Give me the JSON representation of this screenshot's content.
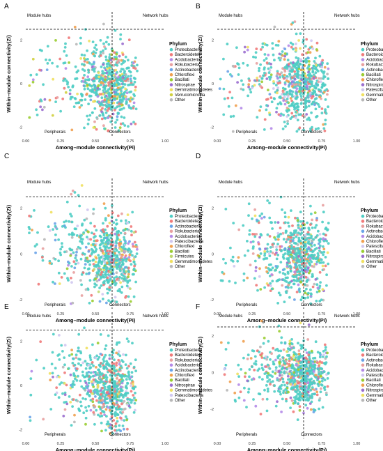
{
  "figure": {
    "panels": [
      {
        "letter": "A",
        "chart_data": {
          "type": "scatter",
          "xlabel": "Among–module connectivity(Pi)",
          "ylabel": "Within–module connectivity(Zi)",
          "xlim": [
            0,
            1
          ],
          "ylim": [
            -2.4,
            3.3
          ],
          "xticks": [
            "0.00",
            "0.25",
            "0.50",
            "0.75",
            "1.00"
          ],
          "xtick_values": [
            0,
            0.25,
            0.5,
            0.75,
            1
          ],
          "yticks": [
            "-2",
            "0",
            "2"
          ],
          "ytick_values": [
            -2,
            0,
            2
          ],
          "thresholds": {
            "pi": 0.62,
            "zi": 2.5
          },
          "quadrants": {
            "top_left": "Module hubs",
            "top_right": "Network hubs",
            "bottom_left": "Peripherals",
            "bottom_right": "Connectors"
          },
          "legend": {
            "title": "Phylum",
            "placement": "right",
            "entries": [
              "Proteobacteria",
              "Bacteroidetes",
              "Acidobacteria",
              "Rokubacteria",
              "Actinobacteria",
              "Chloroflexi",
              "Bacillati",
              "Nitrospirae",
              "Gemmatimonadetes",
              "Verrucomicrobia",
              "Other"
            ]
          },
          "seed": 11,
          "n_points": 700
        }
      },
      {
        "letter": "B",
        "chart_data": {
          "type": "scatter",
          "xlabel": "Among–module connectivity(Pi)",
          "ylabel": "Within–module connectivity(Zi)",
          "xlim": [
            0,
            1
          ],
          "ylim": [
            -2.4,
            3.3
          ],
          "xticks": [
            "0.00",
            "0.25",
            "0.50",
            "0.75",
            "1.00"
          ],
          "xtick_values": [
            0,
            0.25,
            0.5,
            0.75,
            1
          ],
          "yticks": [
            "-2",
            "0",
            "2"
          ],
          "ytick_values": [
            -2,
            0,
            2
          ],
          "thresholds": {
            "pi": 0.62,
            "zi": 2.5
          },
          "quadrants": {
            "top_left": "Module hubs",
            "top_right": "Network hubs",
            "bottom_left": "Peripherals",
            "bottom_right": "Connectors"
          },
          "legend": {
            "title": "Phylum",
            "placement": "right",
            "entries": [
              "Proteobacteria",
              "Bacteroidetes",
              "Acidobacteria",
              "Rokubacteria",
              "Actinobacteria",
              "Bacillati",
              "Chloroflexi",
              "Nitrospirae",
              "Patescibacteria",
              "Gemmatimonadetes",
              "Other"
            ]
          },
          "seed": 23,
          "n_points": 700
        }
      },
      {
        "letter": "C",
        "chart_data": {
          "type": "scatter",
          "xlabel": "Among–module connectivity(Pi)",
          "ylabel": "Within–module connectivity(Zi)",
          "xlim": [
            0,
            1
          ],
          "ylim": [
            -2.4,
            3.3
          ],
          "xticks": [
            "0.00",
            "0.25",
            "0.50",
            "0.75",
            "1.00"
          ],
          "xtick_values": [
            0,
            0.25,
            0.5,
            0.75,
            1
          ],
          "yticks": [
            "-2",
            "0",
            "2"
          ],
          "ytick_values": [
            -2,
            0,
            2
          ],
          "thresholds": {
            "pi": 0.62,
            "zi": 2.5
          },
          "quadrants": {
            "top_left": "Module hubs",
            "top_right": "Network hubs",
            "bottom_left": "Peripherals",
            "bottom_right": "Connectors"
          },
          "legend": {
            "title": "Phylum",
            "placement": "right",
            "entries": [
              "Proteobacteria",
              "Bacteroidetes",
              "Actinobacteria",
              "Rokubacteria",
              "Acidobacteria",
              "Patescibacteria",
              "Chloroflexi",
              "Bacillati",
              "Firmicutes",
              "Gemmatimonadetes",
              "Other"
            ]
          },
          "seed": 37,
          "n_points": 700
        }
      },
      {
        "letter": "D",
        "chart_data": {
          "type": "scatter",
          "xlabel": "Among–module connectivity(Pi)",
          "ylabel": "Within–module connectivity(Zi)",
          "xlim": [
            0,
            1
          ],
          "ylim": [
            -2.4,
            3.3
          ],
          "xticks": [
            "0.00",
            "0.25",
            "0.50",
            "0.75",
            "1.00"
          ],
          "xtick_values": [
            0,
            0.25,
            0.5,
            0.75,
            1
          ],
          "yticks": [
            "-2",
            "0",
            "2"
          ],
          "ytick_values": [
            -2,
            0,
            2
          ],
          "thresholds": {
            "pi": 0.62,
            "zi": 2.5
          },
          "quadrants": {
            "top_left": "Module hubs",
            "top_right": "Network hubs",
            "bottom_left": "Peripherals",
            "bottom_right": "Connectors"
          },
          "legend": {
            "title": "Phylum",
            "placement": "right",
            "entries": [
              "Proteobacteria",
              "Bacteroidetes",
              "Rokubacteria",
              "Actinobacteria",
              "Acidobacteria",
              "Chloroflexi",
              "Patescibacteria",
              "Bacillati",
              "Nitrospirae",
              "Gemmatimonadetes",
              "Other"
            ]
          },
          "seed": 41,
          "n_points": 700
        }
      },
      {
        "letter": "E",
        "chart_data": {
          "type": "scatter",
          "xlabel": "Among–module connectivity(Pi)",
          "ylabel": "Within–module connectivity(Zi)",
          "xlim": [
            0,
            1
          ],
          "ylim": [
            -2.4,
            3.3
          ],
          "xticks": [
            "0.00",
            "0.25",
            "0.50",
            "0.75",
            "1.00"
          ],
          "xtick_values": [
            0,
            0.25,
            0.5,
            0.75,
            1
          ],
          "yticks": [
            "-2",
            "0",
            "2"
          ],
          "ytick_values": [
            -2,
            0,
            2
          ],
          "thresholds": {
            "pi": 0.62,
            "zi": 2.5
          },
          "quadrants": {
            "top_left": "Module hubs",
            "top_right": "Network hubs",
            "bottom_left": "Peripherals",
            "bottom_right": "Connectors"
          },
          "legend": {
            "title": "Phylum",
            "placement": "right",
            "entries": [
              "Proteobacteria",
              "Bacteroidetes",
              "Rokubacteria",
              "Acidobacteria",
              "Actinobacteria",
              "Chloroflexi",
              "Bacillati",
              "Nitrospirae",
              "Gemmatimonadetes",
              "Patescibacteria",
              "Other"
            ]
          },
          "seed": 53,
          "n_points": 700
        }
      },
      {
        "letter": "F",
        "chart_data": {
          "type": "scatter",
          "xlabel": "Among–module connectivity(Pi)",
          "ylabel": "Within–module connectivity(Zi)",
          "xlim": [
            0,
            1
          ],
          "ylim": [
            -3.6,
            3.3
          ],
          "xticks": [
            "0.00",
            "0.25",
            "0.50",
            "0.75",
            "1.00"
          ],
          "xtick_values": [
            0,
            0.25,
            0.5,
            0.75,
            1
          ],
          "yticks": [
            "-2",
            "0",
            "2"
          ],
          "ytick_values": [
            -2,
            0,
            2
          ],
          "thresholds": {
            "pi": 0.62,
            "zi": 2.5
          },
          "quadrants": {
            "top_left": "Module hubs",
            "top_right": "Network hubs",
            "bottom_left": "Peripherals",
            "bottom_right": "Connectors"
          },
          "legend": {
            "title": "Phylum",
            "placement": "right",
            "entries": [
              "Proteobacteria",
              "Bacteroidetes",
              "Actinobacteria",
              "Rokubacteria",
              "Acidobacteria",
              "Patescibacteria",
              "Bacillati",
              "Chloroflexi",
              "Nitrospirae",
              "Gemmatimonadetes",
              "Other"
            ]
          },
          "seed": 67,
          "n_points": 700
        }
      }
    ],
    "phylum_colors": {
      "Proteobacteria": "#4ecdc4",
      "Bacteroidetes": "#f07a7a",
      "Acidobacteria": "#b48ae8",
      "Rokubacteria": "#e8a0a0",
      "Actinobacteria": "#6aa3e8",
      "Chloroflexi": "#f0a050",
      "Bacillati": "#9acd32",
      "Nitrospirae": "#9b6fcf",
      "Gemmatimonadetes": "#f0e060",
      "Verrucomicrobia": "#d0d040",
      "Patescibacteria": "#d0c8f0",
      "Firmicutes": "#c0d870",
      "Other": "#b8b8b8"
    },
    "colors": {
      "threshold_line": "#000000",
      "axis": "#000000"
    }
  }
}
